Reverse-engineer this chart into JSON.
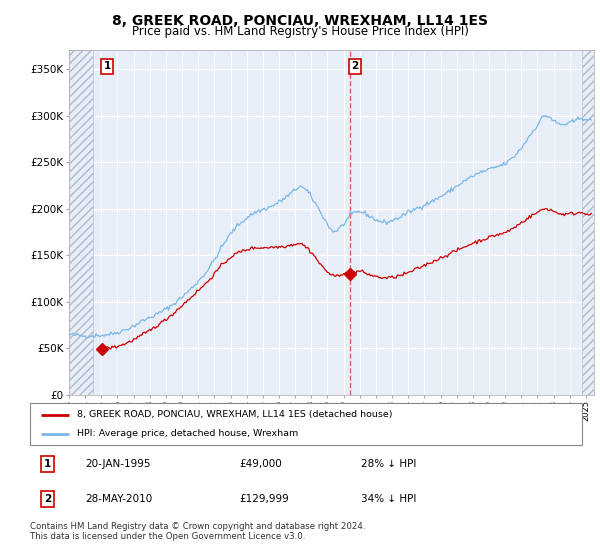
{
  "title": "8, GREEK ROAD, PONCIAU, WREXHAM, LL14 1ES",
  "subtitle": "Price paid vs. HM Land Registry's House Price Index (HPI)",
  "title_fontsize": 10,
  "subtitle_fontsize": 8.5,
  "ylabel_ticks": [
    "£0",
    "£50K",
    "£100K",
    "£150K",
    "£200K",
    "£250K",
    "£300K",
    "£350K"
  ],
  "ytick_values": [
    0,
    50000,
    100000,
    150000,
    200000,
    250000,
    300000,
    350000
  ],
  "ylim": [
    0,
    370000
  ],
  "xlim_start": 1993.0,
  "xlim_end": 2025.5,
  "hpi_color": "#7ab8e8",
  "price_paid_color": "#cc0000",
  "vline_color": "#e06060",
  "point1_x": 1995.05,
  "point1_y": 49000,
  "point2_x": 2010.4,
  "point2_y": 129999,
  "legend_house_label": "8, GREEK ROAD, PONCIAU, WREXHAM, LL14 1ES (detached house)",
  "legend_hpi_label": "HPI: Average price, detached house, Wrexham",
  "note1_num": "1",
  "note1_date": "20-JAN-1995",
  "note1_price": "£49,000",
  "note1_hpi": "28% ↓ HPI",
  "note2_num": "2",
  "note2_date": "28-MAY-2010",
  "note2_price": "£129,999",
  "note2_hpi": "34% ↓ HPI",
  "footer": "Contains HM Land Registry data © Crown copyright and database right 2024.\nThis data is licensed under the Open Government Licence v3.0.",
  "background_color": "#ffffff",
  "plot_bg_color": "#e8eef8",
  "hatch_color": "#b0b8cc",
  "grid_color": "#ffffff",
  "hatch_left_end": 1994.5,
  "hatch_right_start": 2024.75
}
